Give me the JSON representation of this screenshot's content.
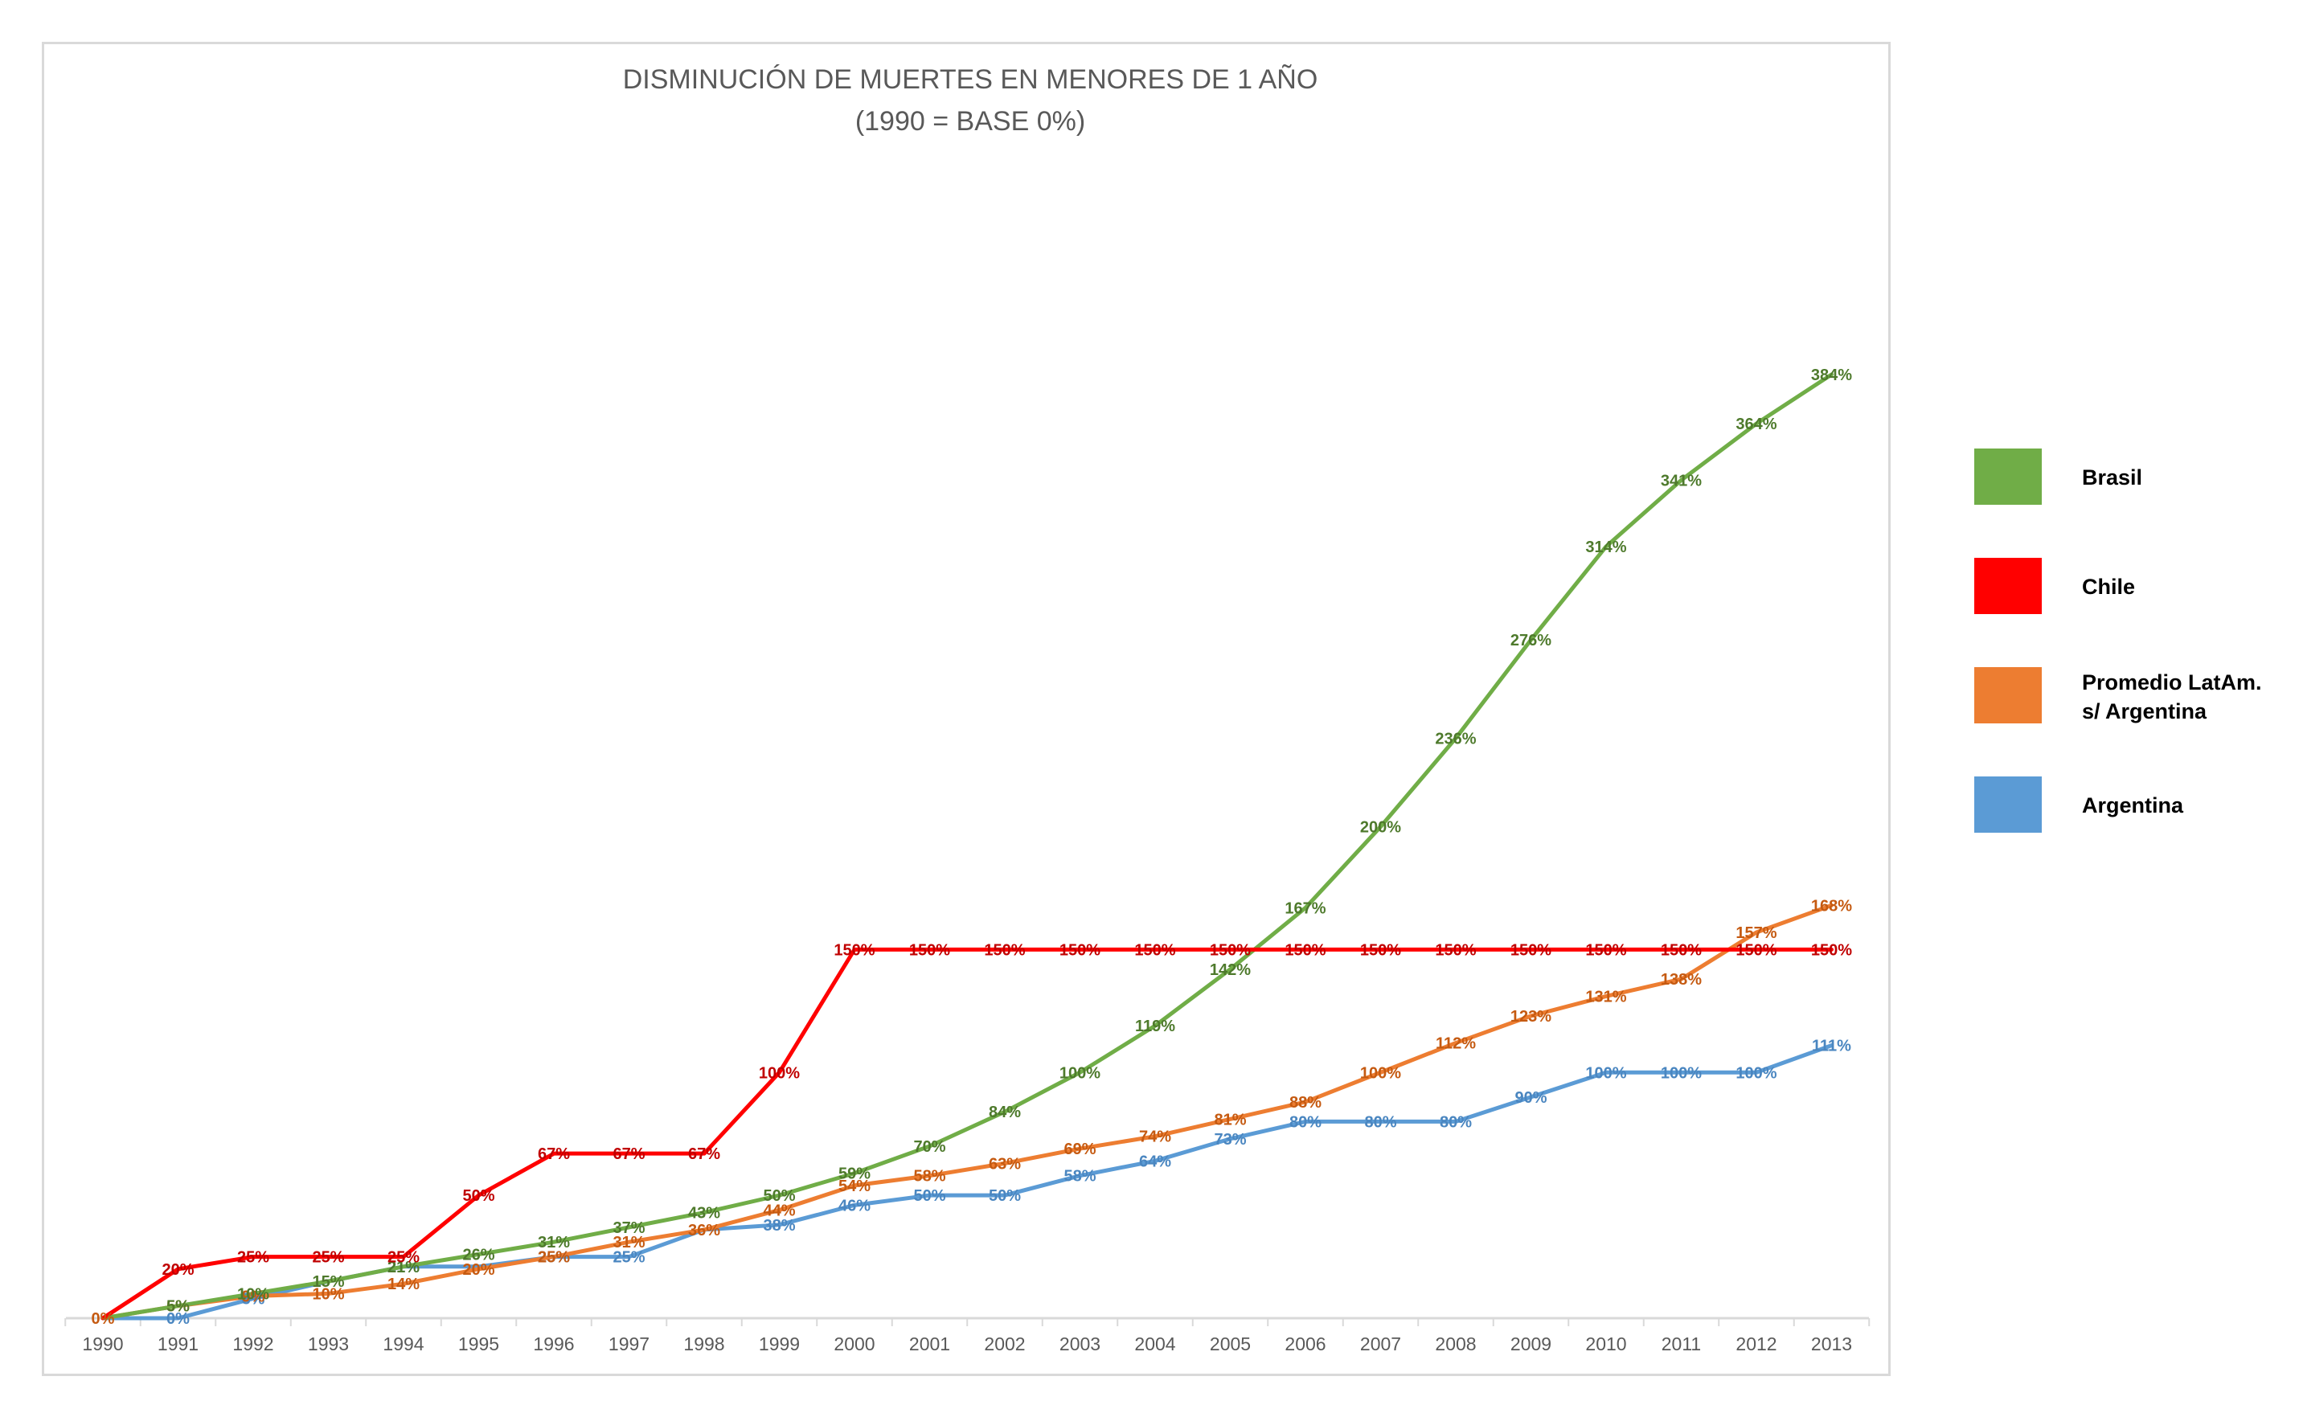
{
  "chart_data": {
    "type": "line",
    "title": "DISMINUCIÓN DE MUERTES EN MENORES DE 1 AÑO",
    "subtitle": "(1990 = BASE 0%)",
    "categories": [
      "1990",
      "1991",
      "1992",
      "1993",
      "1994",
      "1995",
      "1996",
      "1997",
      "1998",
      "1999",
      "2000",
      "2001",
      "2002",
      "2003",
      "2004",
      "2005",
      "2006",
      "2007",
      "2008",
      "2009",
      "2010",
      "2011",
      "2012",
      "2013"
    ],
    "ylim": [
      0,
      400
    ],
    "grid": false,
    "legend_position": "right",
    "series": [
      {
        "name": "Argentina",
        "color": "#5b9bd5",
        "label_color": "#4a86c0",
        "values": [
          0,
          0,
          8,
          15,
          21,
          21,
          25,
          25,
          36,
          38,
          46,
          50,
          50,
          58,
          64,
          73,
          80,
          80,
          80,
          90,
          100,
          100,
          100,
          111
        ],
        "labels": [
          "",
          "0%",
          "8%",
          "",
          "21%",
          "",
          "25%",
          "25%",
          "",
          "38%",
          "46%",
          "50%",
          "50%",
          "58%",
          "64%",
          "73%",
          "80%",
          "80%",
          "80%",
          "90%",
          "100%",
          "100%",
          "100%",
          "111%"
        ]
      },
      {
        "name": "Promedio LatAm. s/ Argentina",
        "legend_lines": [
          "Promedio LatAm.",
          "s/ Argentina"
        ],
        "color": "#ed7d31",
        "label_color": "#c55a11",
        "values": [
          0,
          5,
          9,
          10,
          14,
          20,
          25,
          31,
          36,
          44,
          54,
          58,
          63,
          69,
          74,
          81,
          88,
          100,
          112,
          123,
          131,
          138,
          157,
          168
        ],
        "labels": [
          "0%",
          "5%",
          "9%",
          "10%",
          "14%",
          "20%",
          "25%",
          "31%",
          "36%",
          "44%",
          "54%",
          "58%",
          "63%",
          "69%",
          "74%",
          "81%",
          "88%",
          "100%",
          "112%",
          "123%",
          "131%",
          "138%",
          "157%",
          "168%"
        ]
      },
      {
        "name": "Brasil",
        "color": "#70ad47",
        "label_color": "#4e7a2c",
        "values": [
          0,
          5,
          10,
          15,
          21,
          26,
          31,
          37,
          43,
          50,
          59,
          70,
          84,
          100,
          119,
          142,
          167,
          200,
          236,
          276,
          314,
          341,
          364,
          384
        ],
        "labels": [
          "",
          "5%",
          "10%",
          "15%",
          "21%",
          "26%",
          "31%",
          "37%",
          "43%",
          "50%",
          "59%",
          "70%",
          "84%",
          "100%",
          "119%",
          "142%",
          "167%",
          "200%",
          "236%",
          "276%",
          "314%",
          "341%",
          "364%",
          "384%"
        ]
      },
      {
        "name": "Chile",
        "color": "#ff0000",
        "label_color": "#c00000",
        "values": [
          0,
          20,
          25,
          25,
          25,
          50,
          67,
          67,
          67,
          100,
          150,
          150,
          150,
          150,
          150,
          150,
          150,
          150,
          150,
          150,
          150,
          150,
          150,
          150
        ],
        "labels": [
          "",
          "20%",
          "25%",
          "25%",
          "25%",
          "50%",
          "67%",
          "67%",
          "67%",
          "100%",
          "150%",
          "150%",
          "150%",
          "150%",
          "150%",
          "150%",
          "150%",
          "150%",
          "150%",
          "150%",
          "150%",
          "150%",
          "150%",
          "150%"
        ]
      }
    ],
    "legend_order": [
      "Brasil",
      "Chile",
      "Promedio LatAm. s/ Argentina",
      "Argentina"
    ]
  }
}
